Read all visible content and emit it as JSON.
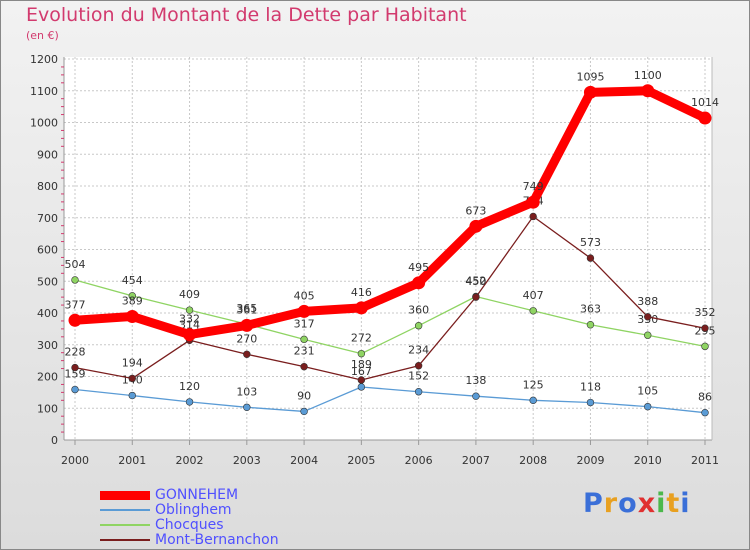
{
  "header": {
    "title": "Evolution du Montant de la Dette par Habitant",
    "subtitle": "(en €)"
  },
  "colors": {
    "title": "#d23a6e",
    "axis_text": "#333333",
    "legend_text": "#5050ff",
    "grid": "#c8c8c8"
  },
  "chart_data": {
    "type": "line",
    "title": "Evolution du Montant de la Dette par Habitant",
    "subtitle": "(en €)",
    "x": [
      "2000",
      "2001",
      "2002",
      "2003",
      "2004",
      "2005",
      "2006",
      "2007",
      "2008",
      "2009",
      "2010",
      "2011"
    ],
    "ylim": [
      0,
      1200
    ],
    "yticks": [
      0,
      100,
      200,
      300,
      400,
      500,
      600,
      700,
      800,
      900,
      1000,
      1100,
      1200
    ],
    "grid": true,
    "legend_position": "bottom-left",
    "series": [
      {
        "name": "GONNEHEM",
        "color": "#ff0000",
        "values": [
          377,
          389,
          332,
          361,
          405,
          416,
          495,
          673,
          749,
          1095,
          1100,
          1014
        ]
      },
      {
        "name": "Oblinghem",
        "color": "#5a9bd5",
        "values": [
          159,
          140,
          120,
          103,
          90,
          167,
          152,
          138,
          125,
          118,
          105,
          86
        ]
      },
      {
        "name": "Chocques",
        "color": "#8fd463",
        "values": [
          504,
          454,
          409,
          365,
          317,
          272,
          360,
          452,
          407,
          363,
          330,
          295
        ]
      },
      {
        "name": "Mont-Bernanchon",
        "color": "#7a1e1e",
        "values": [
          228,
          194,
          314,
          270,
          231,
          189,
          234,
          450,
          704,
          573,
          388,
          352
        ]
      }
    ]
  },
  "logo": {
    "letters": [
      "P",
      "r",
      "o",
      "x",
      "i",
      "t",
      "i"
    ],
    "colors": [
      "#3a6fd8",
      "#e8a020",
      "#3a6fd8",
      "#e03030",
      "#4bb84b",
      "#e8a020",
      "#3a6fd8"
    ]
  }
}
